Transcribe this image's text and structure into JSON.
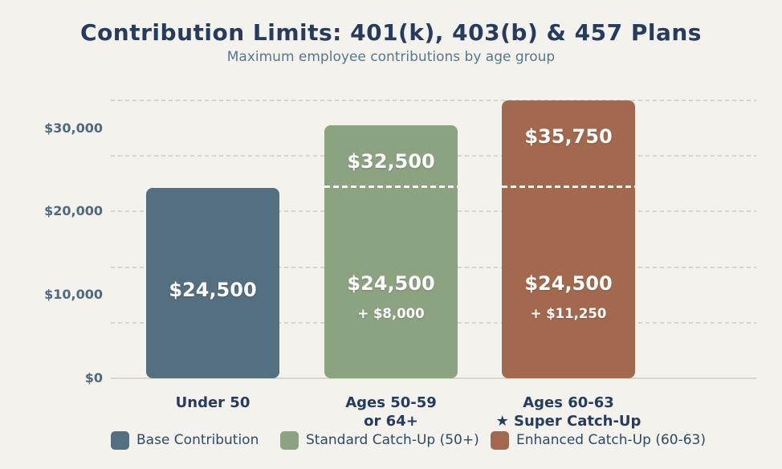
{
  "page": {
    "background_color": "#f3f2ec"
  },
  "chart_data": {
    "type": "bar",
    "stacked": true,
    "title": "Contribution Limits: 401(k), 403(b) & 457 Plans",
    "subtitle": "Maximum employee contributions by age group",
    "xlabel": "",
    "ylabel": "",
    "ylim": [
      0,
      35750
    ],
    "grid": "horizontal dashed",
    "legend_position": "bottom",
    "yticks": [
      {
        "value": 0,
        "label": "$0"
      },
      {
        "value": 10000,
        "label": "$10,000"
      },
      {
        "value": 20000,
        "label": "$20,000"
      },
      {
        "value": 30000,
        "label": "$30,000"
      }
    ],
    "base_limit_marker": {
      "value": 24500,
      "style": "white dashed line at base contribution level"
    },
    "bars": [
      {
        "category_lines": [
          "Under 50"
        ],
        "total_value": 24500,
        "color": "#546f80",
        "top_label": null,
        "value_label": "$24,500",
        "sub_label": null,
        "show_base_marker": false,
        "segments": [
          {
            "name": "Base Contribution",
            "value": 24500
          }
        ]
      },
      {
        "category_lines": [
          "Ages 50-59",
          "or 64+"
        ],
        "total_value": 32500,
        "color": "#8ca380",
        "top_label": "$32,500",
        "value_label": "$24,500",
        "sub_label": "+ $8,000",
        "show_base_marker": true,
        "segments": [
          {
            "name": "Base Contribution",
            "value": 24500
          },
          {
            "name": "Standard Catch-Up",
            "value": 8000
          }
        ]
      },
      {
        "category_lines": [
          "Ages 60-63",
          "★ Super Catch-Up"
        ],
        "total_value": 35750,
        "color": "#a3694e",
        "top_label": "$35,750",
        "value_label": "$24,500",
        "sub_label": "+ $11,250",
        "show_base_marker": true,
        "segments": [
          {
            "name": "Base Contribution",
            "value": 24500
          },
          {
            "name": "Enhanced Catch-Up",
            "value": 11250
          }
        ]
      }
    ],
    "legend": [
      {
        "label": "Base Contribution",
        "color": "#546f80"
      },
      {
        "label": "Standard Catch-Up (50+)",
        "color": "#8ca380"
      },
      {
        "label": "Enhanced Catch-Up (60-63)",
        "color": "#a3694e"
      }
    ],
    "colors": {
      "background": "#f3f2ec",
      "title": "#263c5f",
      "subtitle": "#56788f",
      "tick_label": "#4d6a80",
      "category_label": "#263c5f",
      "legend_label": "#2e4a66",
      "gridline": "#d8d5cb",
      "bar_value_text": "#ffffff"
    }
  }
}
